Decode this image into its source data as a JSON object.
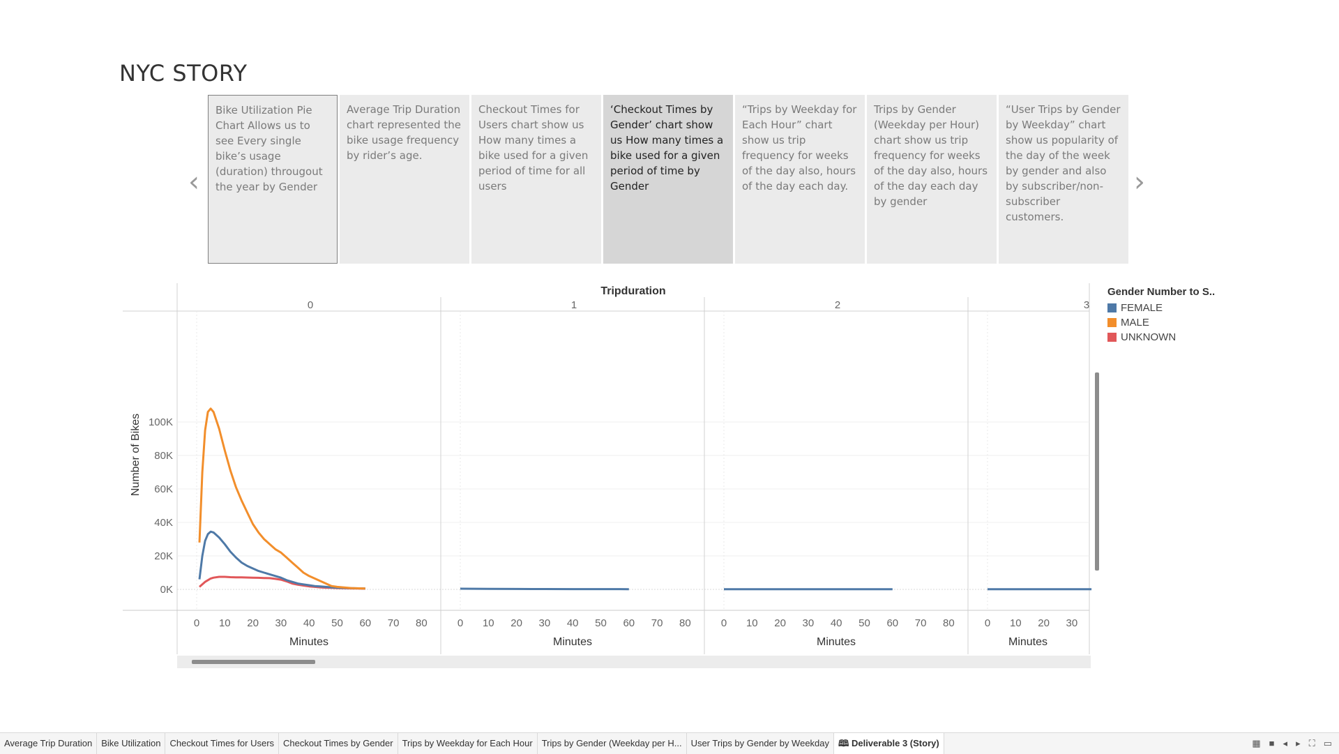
{
  "page_title": "NYC STORY",
  "nav": {
    "prev_icon": "chevron-left-icon",
    "next_icon": "chevron-right-icon",
    "prev_glyph": "‹",
    "next_glyph": "›"
  },
  "story_points": [
    {
      "text": "Bike Utilization Pie Chart Allows us to see Every single bike’s usage (duration) througout the year by Gender"
    },
    {
      "text": "Average Trip Duration chart represented the bike usage frequency by rider’s age."
    },
    {
      "text": "Checkout Times for Users chart show us How many times a bike used for a given period of time for all users"
    },
    {
      "text": "‘Checkout Times by Gender’ chart show us How many times a bike used for a given period of time by Gender"
    },
    {
      "text": "“Trips by Weekday for Each Hour” chart show us trip frequency for weeks of the day also, hours of the day each day."
    },
    {
      "text": "Trips by Gender (Weekday per Hour) chart show us trip frequency for weeks of the day also, hours of the day each day by gender"
    },
    {
      "text": "“User Trips by Gender by Weekday” chart show us popularity of the day of the week by gender  and also by subscriber/non-subscriber customers."
    }
  ],
  "chart_data": {
    "type": "line",
    "column_header": "Tripduration",
    "panels": [
      "0",
      "1",
      "2",
      "3"
    ],
    "xlabel": "Minutes",
    "ylabel": "Number of Bikes",
    "xticks": [
      0,
      10,
      20,
      30,
      40,
      50,
      60,
      70,
      80
    ],
    "last_panel_xticks": [
      0,
      10,
      20,
      30
    ],
    "ylim": [
      0,
      110000
    ],
    "yticks": [
      0,
      20000,
      40000,
      60000,
      80000,
      100000
    ],
    "ytick_labels": [
      "0K",
      "20K",
      "40K",
      "60K",
      "80K",
      "100K"
    ],
    "legend_title": "Gender Number to S..",
    "legend_placement": "right",
    "colors": {
      "FEMALE": "#4e79a7",
      "MALE": "#f28e2b",
      "UNKNOWN": "#e15759"
    },
    "series": [
      {
        "name": "MALE",
        "panel": "0",
        "x": [
          1,
          2,
          3,
          4,
          5,
          6,
          8,
          10,
          12,
          14,
          16,
          18,
          20,
          22,
          24,
          26,
          28,
          30,
          32,
          34,
          36,
          38,
          40,
          42,
          44,
          46,
          48,
          50,
          55,
          60
        ],
        "y": [
          28000,
          70000,
          95000,
          106000,
          108000,
          106000,
          96000,
          83000,
          71000,
          61000,
          53000,
          46000,
          39000,
          34000,
          30000,
          27000,
          24000,
          22000,
          19000,
          16000,
          13000,
          10000,
          8000,
          6500,
          5000,
          3500,
          2000,
          1500,
          800,
          500
        ]
      },
      {
        "name": "FEMALE",
        "panel": "0",
        "x": [
          1,
          2,
          3,
          4,
          5,
          6,
          8,
          10,
          12,
          14,
          16,
          18,
          20,
          22,
          24,
          26,
          28,
          30,
          32,
          34,
          36,
          38,
          40,
          42,
          44,
          46,
          48,
          50,
          55,
          60
        ],
        "y": [
          6000,
          20000,
          29000,
          33000,
          34500,
          34000,
          31000,
          27000,
          22500,
          19000,
          16000,
          14000,
          12500,
          11000,
          10000,
          9000,
          8000,
          7000,
          5500,
          4500,
          3500,
          3000,
          2500,
          2000,
          1800,
          1500,
          1200,
          1000,
          700,
          500
        ]
      },
      {
        "name": "UNKNOWN",
        "panel": "0",
        "x": [
          1,
          2,
          3,
          4,
          5,
          6,
          8,
          10,
          12,
          14,
          16,
          18,
          20,
          22,
          24,
          26,
          28,
          30,
          32,
          34,
          36,
          38,
          40,
          42,
          44,
          46,
          48,
          50,
          55,
          60
        ],
        "y": [
          1500,
          3000,
          4500,
          5500,
          6500,
          7000,
          7500,
          7500,
          7300,
          7200,
          7200,
          7100,
          7000,
          6900,
          6800,
          6700,
          6300,
          5800,
          4800,
          3500,
          2800,
          2300,
          1800,
          1500,
          1200,
          1000,
          900,
          800,
          600,
          400
        ]
      },
      {
        "name": "FEMALE",
        "panel": "1",
        "x": [
          0,
          10,
          20,
          30,
          40,
          50,
          60
        ],
        "y": [
          400,
          300,
          250,
          200,
          180,
          150,
          120
        ]
      },
      {
        "name": "FEMALE",
        "panel": "2",
        "x": [
          0,
          10,
          20,
          30,
          40,
          50,
          60
        ],
        "y": [
          100,
          100,
          100,
          100,
          100,
          100,
          100
        ]
      },
      {
        "name": "FEMALE",
        "panel": "3",
        "x": [
          0,
          10,
          20,
          30,
          37
        ],
        "y": [
          100,
          100,
          100,
          100,
          100
        ]
      }
    ]
  },
  "tabs": [
    {
      "label": "Average Trip Duration"
    },
    {
      "label": "Bike Utilization"
    },
    {
      "label": "Checkout Times for Users"
    },
    {
      "label": "Checkout Times by Gender"
    },
    {
      "label": "Trips by Weekday for Each Hour"
    },
    {
      "label": "Trips by Gender (Weekday per H..."
    },
    {
      "label": "User Trips by Gender by Weekday"
    },
    {
      "label": "Deliverable 3 (Story)",
      "icon": "book-icon",
      "glyph": "🕮"
    }
  ],
  "bottom_controls": [
    {
      "name": "grid-view-icon",
      "glyph": "▦"
    },
    {
      "name": "single-view-icon",
      "glyph": "■"
    },
    {
      "name": "prev-sheet-icon",
      "glyph": "◂"
    },
    {
      "name": "next-sheet-icon",
      "glyph": "▸"
    },
    {
      "name": "fit-icon",
      "glyph": "⛶"
    },
    {
      "name": "present-icon",
      "glyph": "▭"
    }
  ]
}
